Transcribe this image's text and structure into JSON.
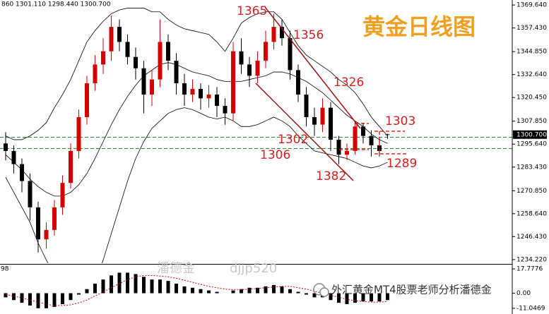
{
  "chart_data": {
    "type": "candlestick",
    "header": "860 1301.110 1298.440 1300.700",
    "title": "黄金日线图",
    "watermark": [
      "潘德金",
      "djjp520"
    ],
    "footer_text": "外汇黄金MT4股票老师分析潘德金",
    "annotations": [
      "1365",
      "1356",
      "1326",
      "1303",
      "1302",
      "1306",
      "1382",
      "1289"
    ],
    "up_color": "#d40000",
    "down_color": "#000000",
    "ylim": [
      1232.3,
      1372.3
    ],
    "yticks": [
      {
        "value": 1369.64,
        "label": "1369.640"
      },
      {
        "value": 1357.43,
        "label": "1357.430"
      },
      {
        "value": 1344.85,
        "label": "1344.850"
      },
      {
        "value": 1332.64,
        "label": "1332.640"
      },
      {
        "value": 1320.45,
        "label": "1320.450"
      },
      {
        "value": 1307.85,
        "label": "1307.850"
      },
      {
        "value": 1295.64,
        "label": "1295.640"
      },
      {
        "value": 1283.43,
        "label": "1283.430"
      },
      {
        "value": 1270.85,
        "label": "1270.850"
      },
      {
        "value": 1258.64,
        "label": "1258.640"
      },
      {
        "value": 1246.43,
        "label": "1246.430"
      },
      {
        "value": 1234.22,
        "label": "1234.220"
      }
    ],
    "last_price": {
      "value": 1300.7,
      "label": "1300.700"
    },
    "reference_lines": {
      "color": "#2e8b2e",
      "values": [
        1299.3,
        1293.3
      ]
    },
    "open": [
      1296,
      1292,
      1285,
      1276,
      1262,
      1245,
      1250,
      1262,
      1275,
      1292,
      1310,
      1328,
      1338,
      1345,
      1358,
      1350,
      1342,
      1336,
      1322,
      1330,
      1350,
      1340,
      1328,
      1322,
      1325,
      1320,
      1322,
      1316,
      1312,
      1345,
      1338,
      1332,
      1340,
      1350,
      1358,
      1352,
      1335,
      1322,
      1310,
      1306,
      1315,
      1298,
      1290,
      1292,
      1305,
      1300,
      1295,
      1300.86
    ],
    "high": [
      1302,
      1295,
      1288,
      1280,
      1265,
      1254,
      1266,
      1279,
      1296,
      1314,
      1332,
      1343,
      1352,
      1364,
      1362,
      1354,
      1347,
      1340,
      1335,
      1362,
      1354,
      1344,
      1333,
      1330,
      1328,
      1327,
      1326,
      1320,
      1350,
      1352,
      1342,
      1345,
      1356,
      1365,
      1362,
      1356,
      1338,
      1326,
      1315,
      1320,
      1318,
      1300,
      1296,
      1308,
      1307,
      1303,
      1299,
      1301.11
    ],
    "low": [
      1287,
      1280,
      1270,
      1255,
      1238,
      1240,
      1247,
      1258,
      1272,
      1288,
      1306,
      1324,
      1333,
      1340,
      1345,
      1338,
      1330,
      1312,
      1316,
      1326,
      1335,
      1322,
      1316,
      1318,
      1314,
      1315,
      1310,
      1306,
      1308,
      1333,
      1326,
      1328,
      1336,
      1346,
      1348,
      1330,
      1318,
      1305,
      1300,
      1302,
      1292,
      1285,
      1287,
      1290,
      1296,
      1289,
      1289,
      1298.44
    ],
    "close": [
      1292,
      1285,
      1276,
      1262,
      1245,
      1250,
      1262,
      1275,
      1292,
      1310,
      1328,
      1338,
      1345,
      1358,
      1350,
      1342,
      1336,
      1322,
      1330,
      1350,
      1340,
      1328,
      1322,
      1325,
      1320,
      1322,
      1316,
      1312,
      1345,
      1338,
      1332,
      1340,
      1350,
      1358,
      1352,
      1335,
      1322,
      1310,
      1306,
      1315,
      1298,
      1290,
      1292,
      1305,
      1300,
      1295,
      1292,
      1300.7
    ],
    "bands": {
      "color": "#000000",
      "upper": [
        1300,
        1298,
        1298,
        1300,
        1303,
        1307,
        1315,
        1322,
        1330,
        1340,
        1350,
        1356,
        1361,
        1365,
        1367,
        1368,
        1368,
        1368,
        1366,
        1366,
        1362,
        1359,
        1357,
        1356,
        1355,
        1354,
        1350,
        1345,
        1352,
        1360,
        1363,
        1365,
        1366,
        1366,
        1362,
        1355,
        1348,
        1343,
        1340,
        1337,
        1334,
        1330,
        1327,
        1323,
        1317,
        1310,
        1305,
        1300
      ],
      "middle": [
        1290,
        1286,
        1282,
        1277,
        1273,
        1270,
        1268,
        1268,
        1270,
        1274,
        1280,
        1288,
        1297,
        1306,
        1314,
        1321,
        1327,
        1332,
        1335,
        1338,
        1339,
        1338,
        1336,
        1334,
        1333,
        1332,
        1330,
        1329,
        1329,
        1329,
        1330,
        1331,
        1332,
        1334,
        1334,
        1333,
        1331,
        1329,
        1326,
        1323,
        1319,
        1315,
        1311,
        1308,
        1305,
        1301,
        1298,
        1296
      ],
      "lower": [
        1278,
        1270,
        1262,
        1254,
        1243,
        1234,
        1226,
        1220,
        1215,
        1213,
        1215,
        1222,
        1234,
        1248,
        1262,
        1276,
        1288,
        1297,
        1304,
        1308,
        1312,
        1314,
        1315,
        1314,
        1312,
        1310,
        1309,
        1310,
        1308,
        1305,
        1305,
        1306,
        1308,
        1310,
        1308,
        1305,
        1300,
        1296,
        1292,
        1291,
        1290,
        1289,
        1288,
        1286,
        1284,
        1283,
        1284,
        1286
      ]
    },
    "macd": {
      "label": "98",
      "ylim": [
        -15.2,
        20.4
      ],
      "yticks": [
        {
          "value": 17.7776,
          "label": "17.7776"
        },
        {
          "value": 0,
          "label": "0.00"
        },
        {
          "value": -11.0469,
          "label": "-11.0469"
        }
      ],
      "bar_color": "#000000",
      "signal_color": "#d40000",
      "values": [
        -3,
        -5,
        -7,
        -9,
        -11,
        -11,
        -10,
        -8,
        -5,
        -1,
        3,
        7,
        10,
        13,
        15,
        15,
        14,
        12,
        10,
        10,
        9,
        7,
        5,
        4,
        3,
        2,
        1,
        0,
        2,
        3,
        4,
        4,
        5,
        6,
        5,
        3,
        1,
        -1,
        -3,
        -3,
        -5,
        -7,
        -8,
        -7,
        -6,
        -6,
        -6,
        -5
      ],
      "signal": [
        -1,
        -2,
        -3.5,
        -5,
        -6.5,
        -8,
        -9,
        -9,
        -8.5,
        -7,
        -5,
        -2,
        1,
        4,
        7,
        10,
        12,
        13,
        13,
        12.5,
        12,
        11,
        9.5,
        8,
        6.5,
        5,
        4,
        3,
        2.5,
        2.5,
        3,
        3.5,
        4,
        4.5,
        5,
        5,
        4,
        3,
        1.5,
        0,
        -1.5,
        -3,
        -4.5,
        -5.5,
        -6,
        -6.5,
        -6.5,
        -6
      ]
    }
  }
}
